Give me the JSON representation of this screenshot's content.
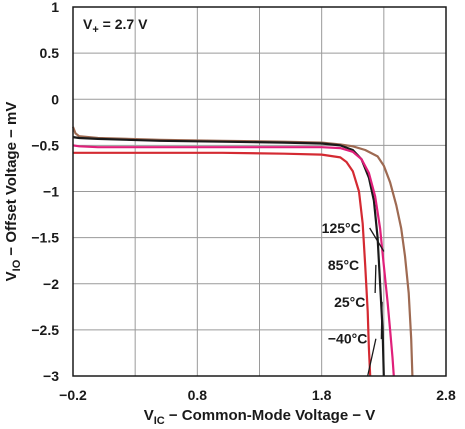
{
  "chart_data": {
    "type": "line",
    "xlabel_main": "V",
    "xlabel_sub": "IC",
    "xlabel_rest": " − Common-Mode Voltage − V",
    "ylabel_main": "V",
    "ylabel_sub": "IO",
    "ylabel_rest": " − Offset Voltage − mV",
    "xlim": [
      -0.2,
      2.8
    ],
    "ylim": [
      -3,
      1
    ],
    "xticks": [
      -0.2,
      0.8,
      1.8,
      2.8
    ],
    "xtick_labels": [
      "−0.2",
      "0.8",
      "1.8",
      "2.8"
    ],
    "yticks": [
      1,
      0.5,
      0,
      -0.5,
      -1,
      -1.5,
      -2,
      -2.5,
      -3
    ],
    "ytick_labels": [
      "1",
      "0.5",
      "0",
      "−0.5",
      "−1",
      "−1.5",
      "−2",
      "−2.5",
      "−3"
    ],
    "x_minor_divisions": 2,
    "grid": true,
    "annotation": {
      "main": "V",
      "sub": "+",
      "rest": " = 2.7 V"
    },
    "series": [
      {
        "name": "125°C",
        "color": "#9e6a52",
        "x": [
          -0.2,
          -0.18,
          -0.15,
          0.0,
          0.5,
          1.0,
          1.5,
          1.8,
          1.95,
          2.05,
          2.15,
          2.25,
          2.3,
          2.35,
          2.4,
          2.44,
          2.47,
          2.5,
          2.52,
          2.53
        ],
        "y": [
          -0.3,
          -0.37,
          -0.4,
          -0.42,
          -0.44,
          -0.45,
          -0.46,
          -0.47,
          -0.49,
          -0.51,
          -0.55,
          -0.62,
          -0.72,
          -0.9,
          -1.15,
          -1.4,
          -1.7,
          -2.1,
          -2.6,
          -3.0
        ]
      },
      {
        "name": "85°C",
        "color": "#1a1a1a",
        "x": [
          -0.2,
          -0.15,
          0.0,
          0.5,
          1.0,
          1.5,
          1.8,
          1.95,
          2.05,
          2.12,
          2.18,
          2.22,
          2.25,
          2.27,
          2.29,
          2.3
        ],
        "y": [
          -0.41,
          -0.42,
          -0.43,
          -0.45,
          -0.46,
          -0.47,
          -0.48,
          -0.5,
          -0.55,
          -0.65,
          -0.85,
          -1.1,
          -1.5,
          -2.0,
          -2.5,
          -3.0
        ]
      },
      {
        "name": "25°C",
        "color": "#e0207a",
        "x": [
          -0.2,
          -0.15,
          0.0,
          0.5,
          1.0,
          1.5,
          1.8,
          1.95,
          2.05,
          2.12,
          2.18,
          2.23,
          2.27,
          2.3,
          2.33,
          2.35,
          2.37,
          2.38
        ],
        "y": [
          -0.5,
          -0.51,
          -0.52,
          -0.52,
          -0.52,
          -0.52,
          -0.52,
          -0.53,
          -0.57,
          -0.65,
          -0.8,
          -1.05,
          -1.4,
          -1.8,
          -2.2,
          -2.5,
          -2.8,
          -3.0
        ]
      },
      {
        "name": "−40°C",
        "color": "#d42a32",
        "x": [
          -0.2,
          -0.15,
          0.0,
          0.5,
          1.0,
          1.5,
          1.8,
          1.95,
          2.0,
          2.05,
          2.1,
          2.13,
          2.15,
          2.17,
          2.18,
          2.19
        ],
        "y": [
          -0.58,
          -0.58,
          -0.58,
          -0.58,
          -0.58,
          -0.59,
          -0.6,
          -0.63,
          -0.68,
          -0.78,
          -1.0,
          -1.35,
          -1.8,
          -2.3,
          -2.7,
          -3.0
        ]
      }
    ],
    "labels": [
      {
        "series": 0,
        "text": "125°C",
        "pos": [
          1.8,
          -1.45
        ],
        "arrow_to": [
          2.3,
          -1.65
        ]
      },
      {
        "series": 1,
        "text": "85°C",
        "pos": [
          1.85,
          -1.85
        ],
        "arrow_to": [
          2.23,
          -2.1
        ]
      },
      {
        "series": 2,
        "text": "25°C",
        "pos": [
          1.9,
          -2.25
        ],
        "arrow_to": [
          2.28,
          -2.6
        ]
      },
      {
        "series": 3,
        "text": "−40°C",
        "pos": [
          1.85,
          -2.65
        ],
        "arrow_to": [
          2.17,
          -3.0
        ]
      }
    ]
  }
}
